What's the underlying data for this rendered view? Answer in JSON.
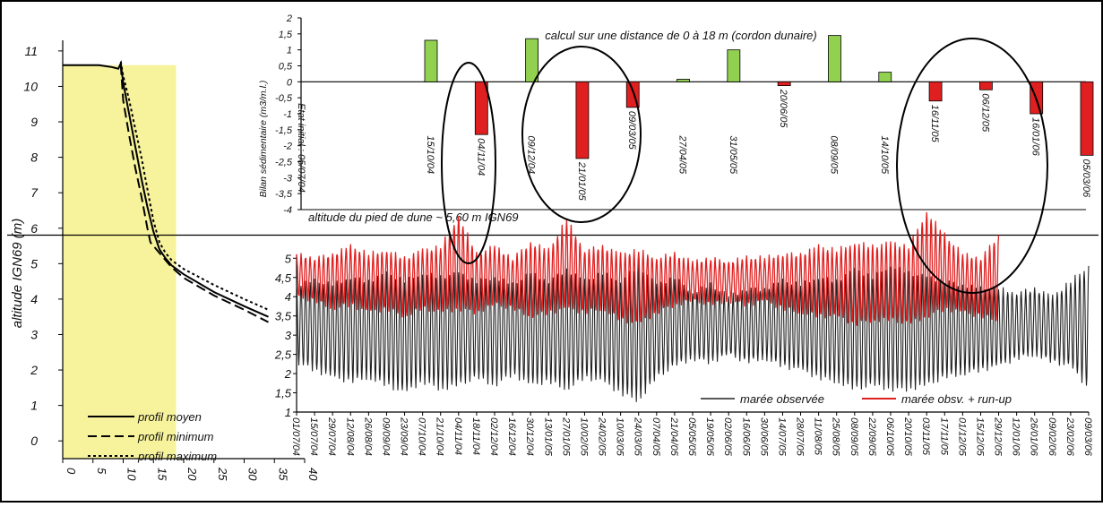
{
  "chart_data": [
    {
      "type": "line",
      "panel": "beach-profile",
      "ylabel": "altitude IGN69 (m)",
      "xlabel": "",
      "xlim": [
        0,
        40
      ],
      "ylim": [
        -0.5,
        11.3
      ],
      "xticks": [
        "0",
        "5",
        "10",
        "15",
        "20",
        "25",
        "30",
        "35",
        "40"
      ],
      "yticks": [
        "0",
        "1",
        "2",
        "3",
        "4",
        "5",
        "6",
        "7",
        "8",
        "9",
        "10",
        "11"
      ],
      "shaded_zone_x": [
        0,
        18
      ],
      "series": [
        {
          "name": "profil moyen",
          "style": "solid",
          "x": [
            0,
            3,
            6,
            8,
            9.2,
            9.6,
            10,
            11,
            12,
            13,
            14,
            15,
            16,
            17,
            18,
            20,
            25,
            30,
            34
          ],
          "y": [
            10.6,
            10.6,
            10.6,
            10.55,
            10.5,
            10.65,
            10.1,
            9.2,
            8.3,
            7.4,
            6.6,
            5.9,
            5.4,
            5.15,
            4.95,
            4.7,
            4.2,
            3.8,
            3.5
          ]
        },
        {
          "name": "profil minimum",
          "style": "dashed",
          "x": [
            9.6,
            10,
            11,
            12,
            13,
            14,
            14.5,
            16,
            18,
            20,
            25,
            30,
            34
          ],
          "y": [
            10.6,
            9.6,
            8.6,
            7.7,
            6.9,
            6.0,
            5.6,
            5.3,
            4.9,
            4.6,
            4.1,
            3.7,
            3.35
          ]
        },
        {
          "name": "profil maximum",
          "style": "dotted",
          "x": [
            9.6,
            10,
            11,
            12,
            13,
            14,
            15,
            16,
            17,
            18,
            20,
            25,
            30,
            34
          ],
          "y": [
            10.7,
            10.3,
            9.6,
            8.8,
            8.0,
            7.1,
            6.2,
            5.6,
            5.3,
            5.1,
            4.85,
            4.4,
            4.0,
            3.7
          ]
        }
      ],
      "legend_placement": "bottom-left"
    },
    {
      "type": "bar",
      "panel": "sediment-budget",
      "title": "calcul sur une distance de 0 à 18 m (cordon dunaire)",
      "ylabel": "Bilan sédimentaire (m3/m.l.)",
      "annotation": "Etat initial : 05/07/04",
      "ylim": [
        -4,
        2
      ],
      "yticks": [
        "2",
        "1,5",
        "1",
        "0,5",
        "0",
        "-0,5",
        "-1",
        "-1,5",
        "-2",
        "-2,5",
        "-3",
        "-3,5",
        "-4"
      ],
      "categories": [
        "15/10/04",
        "04/11/04",
        "09/12/04",
        "21/01/05",
        "09/03/05",
        "27/04/05",
        "31/05/05",
        "20/06/05",
        "08/09/05",
        "14/10/05",
        "16/11/05",
        "06/12/05",
        "16/01/06",
        "05/03/06"
      ],
      "values": [
        1.3,
        -1.65,
        1.35,
        -2.4,
        -0.8,
        0.08,
        1.0,
        -0.12,
        1.45,
        0.3,
        -0.6,
        -0.25,
        -1.0,
        -2.3
      ],
      "positive_color": "#92d050",
      "negative_color": "#e02020"
    },
    {
      "type": "line",
      "panel": "tide",
      "ylim": [
        1,
        5.1
      ],
      "yticks": [
        "1",
        "1,5",
        "2",
        "2,5",
        "3",
        "3,5",
        "4",
        "4,5",
        "5"
      ],
      "xlim": [
        "01/07/04",
        "09/03/06"
      ],
      "xticks": [
        "01/07/04",
        "15/07/04",
        "29/07/04",
        "12/08/04",
        "26/08/04",
        "09/09/04",
        "23/09/04",
        "07/10/04",
        "21/10/04",
        "04/11/04",
        "18/11/04",
        "02/12/04",
        "16/12/04",
        "30/12/04",
        "13/01/05",
        "27/01/05",
        "10/02/05",
        "24/02/05",
        "10/03/05",
        "24/03/05",
        "07/04/05",
        "21/04/05",
        "05/05/05",
        "19/05/05",
        "02/06/05",
        "16/06/05",
        "30/06/05",
        "14/07/05",
        "28/07/05",
        "11/08/05",
        "25/08/05",
        "08/09/05",
        "22/09/05",
        "06/10/05",
        "20/10/05",
        "03/11/05",
        "17/11/05",
        "01/12/05",
        "15/12/05",
        "29/12/05",
        "12/01/06",
        "26/01/06",
        "09/02/06",
        "23/02/06",
        "09/03/06"
      ],
      "reference_line": {
        "y": 5.6,
        "label": "altitude du pied de dune ~ 5,60 m IGN69"
      },
      "series": [
        {
          "name": "marée observée",
          "color": "#222222",
          "x": [
            "01/07/04",
            "15/07/04",
            "29/07/04",
            "12/08/04",
            "26/08/04",
            "09/09/04",
            "23/09/04",
            "07/10/04",
            "21/10/04",
            "04/11/04",
            "18/11/04",
            "02/12/04",
            "16/12/04",
            "30/12/04",
            "13/01/05",
            "27/01/05",
            "10/02/05",
            "24/02/05",
            "10/03/05",
            "24/03/05",
            "07/04/05",
            "21/04/05",
            "05/05/05",
            "19/05/05",
            "02/06/05",
            "16/06/05",
            "30/06/05",
            "14/07/05",
            "28/07/05",
            "11/08/05",
            "25/08/05",
            "08/09/05",
            "22/09/05",
            "06/10/05",
            "20/10/05",
            "03/11/05",
            "17/11/05",
            "01/12/05",
            "15/12/05",
            "29/12/05",
            "12/01/06",
            "26/01/06",
            "09/02/06",
            "23/02/06",
            "09/03/06"
          ],
          "max": [
            4.3,
            4.4,
            4.3,
            4.5,
            4.4,
            4.6,
            4.4,
            4.6,
            4.5,
            4.6,
            4.4,
            4.5,
            4.3,
            4.6,
            4.4,
            4.7,
            4.4,
            4.6,
            4.4,
            4.8,
            4.3,
            4.5,
            4.1,
            4.3,
            4.0,
            4.2,
            4.2,
            4.4,
            4.3,
            4.5,
            4.4,
            4.7,
            4.5,
            4.8,
            4.6,
            4.5,
            4.4,
            4.3,
            4.2,
            4.2,
            4.1,
            4.2,
            4.0,
            4.4,
            4.8
          ],
          "min": [
            2.3,
            2.1,
            1.9,
            1.8,
            1.9,
            1.7,
            1.5,
            1.8,
            1.6,
            1.7,
            1.9,
            1.7,
            2.0,
            1.7,
            1.8,
            1.6,
            1.9,
            1.8,
            1.5,
            1.3,
            1.9,
            2.2,
            2.4,
            2.3,
            2.5,
            2.3,
            2.4,
            2.2,
            2.1,
            1.9,
            1.8,
            1.6,
            1.7,
            1.6,
            1.6,
            1.7,
            1.9,
            2.0,
            2.1,
            2.2,
            2.4,
            2.5,
            2.3,
            2.2,
            1.6
          ]
        },
        {
          "name": "marée obsv. + run-up",
          "color": "#e02020",
          "x": [
            "01/07/04",
            "15/07/04",
            "29/07/04",
            "12/08/04",
            "26/08/04",
            "09/09/04",
            "23/09/04",
            "07/10/04",
            "21/10/04",
            "04/11/04",
            "18/11/04",
            "02/12/04",
            "16/12/04",
            "30/12/04",
            "13/01/05",
            "27/01/05",
            "10/02/05",
            "24/02/05",
            "10/03/05",
            "24/03/05",
            "07/04/05",
            "21/04/05",
            "05/05/05",
            "19/05/05",
            "02/06/05",
            "16/06/05",
            "30/06/05",
            "14/07/05",
            "28/07/05",
            "11/08/05",
            "25/08/05",
            "08/09/05",
            "22/09/05",
            "06/10/05",
            "20/10/05",
            "03/11/05",
            "17/11/05",
            "01/12/05",
            "15/12/05",
            "29/12/05"
          ],
          "max": [
            5.1,
            5.0,
            5.1,
            5.3,
            5.1,
            5.2,
            5.0,
            5.2,
            5.3,
            6.1,
            5.1,
            5.3,
            5.0,
            5.4,
            5.2,
            6.0,
            5.2,
            5.3,
            5.1,
            5.2,
            5.0,
            5.1,
            4.9,
            5.0,
            4.9,
            5.0,
            5.0,
            5.1,
            5.1,
            5.3,
            5.2,
            5.4,
            5.3,
            5.4,
            5.3,
            6.2,
            5.6,
            5.1,
            5.0,
            5.6
          ],
          "min": [
            4.0,
            3.9,
            3.7,
            3.8,
            3.6,
            3.7,
            3.5,
            3.7,
            3.6,
            3.7,
            3.6,
            3.8,
            3.7,
            3.5,
            3.6,
            3.7,
            3.6,
            3.7,
            3.4,
            3.3,
            3.6,
            3.8,
            3.9,
            3.8,
            3.9,
            3.8,
            3.9,
            3.7,
            3.6,
            3.5,
            3.5,
            3.3,
            3.4,
            3.4,
            3.3,
            3.5,
            3.7,
            3.6,
            3.5,
            3.4
          ]
        }
      ],
      "legend_placement": "bottom-right",
      "highlighted_events": [
        "04/11/04",
        "21/01/05",
        "09/03/05",
        "16/11/05",
        "06/12/05",
        "16/01/06"
      ]
    }
  ]
}
